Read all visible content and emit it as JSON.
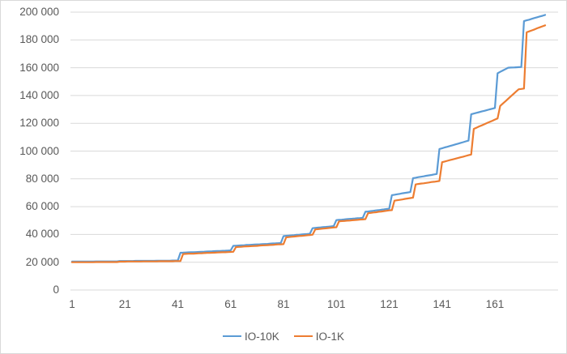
{
  "chart_data": {
    "type": "line",
    "title": "",
    "xlabel": "",
    "ylabel": "",
    "x_values_are_indices_starting_at_1": true,
    "n_points": 180,
    "ylim": [
      0,
      200000
    ],
    "y_tick_step": 20000,
    "y_tick_labels": [
      "0",
      "20 000",
      "40 000",
      "60 000",
      "80 000",
      "100 000",
      "120 000",
      "140 000",
      "160 000",
      "180 000",
      "200 000"
    ],
    "x_tick_values": [
      1,
      21,
      41,
      61,
      81,
      101,
      121,
      141,
      161
    ],
    "grid": "horizontal",
    "legend_position": "bottom-center",
    "axis_text_color": "#595959",
    "gridline_color": "#d9d9d9",
    "series": [
      {
        "name": "IO-10K",
        "color": "#5B9BD5",
        "values": [
          20500,
          20500,
          20500,
          20500,
          20500,
          20500,
          20500,
          20500,
          20500,
          20600,
          20600,
          20600,
          20600,
          20600,
          20600,
          20600,
          20600,
          20600,
          20900,
          20900,
          20900,
          20900,
          20900,
          20900,
          21000,
          21000,
          21000,
          21000,
          21000,
          21000,
          21000,
          21000,
          21100,
          21100,
          21100,
          21100,
          21100,
          21100,
          21200,
          21200,
          21200,
          26800,
          26900,
          27000,
          27100,
          27200,
          27200,
          27300,
          27400,
          27500,
          27600,
          27700,
          27800,
          27900,
          28000,
          28100,
          28100,
          28200,
          28300,
          28400,
          28500,
          31800,
          31900,
          32000,
          32100,
          32200,
          32400,
          32500,
          32600,
          32700,
          32800,
          32900,
          33000,
          33100,
          33200,
          33400,
          33500,
          33600,
          33700,
          33800,
          38800,
          39000,
          39100,
          39300,
          39500,
          39700,
          39800,
          40000,
          40200,
          40300,
          40500,
          44500,
          44700,
          44900,
          45100,
          45300,
          45400,
          45600,
          45800,
          46000,
          50300,
          50500,
          50600,
          50800,
          51000,
          51200,
          51300,
          51500,
          51700,
          51800,
          52000,
          56300,
          56500,
          56800,
          57000,
          57300,
          57500,
          57800,
          58000,
          58300,
          58500,
          68300,
          68600,
          68900,
          69200,
          69600,
          69900,
          70200,
          70500,
          80500,
          80800,
          81200,
          81500,
          81800,
          82200,
          82500,
          82800,
          83200,
          83500,
          101500,
          102000,
          102600,
          103100,
          103700,
          104200,
          104800,
          105300,
          105900,
          106400,
          107000,
          107500,
          126500,
          127000,
          127500,
          128000,
          128500,
          129000,
          129500,
          130000,
          130500,
          131000,
          156000,
          157000,
          158000,
          159000,
          160000,
          160100,
          160200,
          160300,
          160400,
          160500,
          193500,
          194100,
          194600,
          195200,
          195800,
          196300,
          196900,
          197400,
          198000
        ]
      },
      {
        "name": "IO-1K",
        "color": "#ED7D31",
        "values": [
          20000,
          20000,
          20000,
          20000,
          20000,
          20000,
          20000,
          20000,
          20000,
          20100,
          20100,
          20100,
          20100,
          20100,
          20100,
          20100,
          20100,
          20100,
          20400,
          20400,
          20400,
          20500,
          20500,
          20500,
          20500,
          20500,
          20500,
          20600,
          20600,
          20600,
          20600,
          20600,
          20600,
          20700,
          20700,
          20700,
          20700,
          20700,
          20700,
          20800,
          20800,
          20800,
          25900,
          26000,
          26100,
          26200,
          26200,
          26300,
          26400,
          26500,
          26600,
          26700,
          26700,
          26800,
          26900,
          27000,
          27100,
          27200,
          27200,
          27300,
          27400,
          27500,
          30900,
          31000,
          31100,
          31300,
          31400,
          31500,
          31600,
          31700,
          31800,
          32000,
          32100,
          32200,
          32300,
          32400,
          32500,
          32700,
          32800,
          32900,
          33000,
          37900,
          38100,
          38300,
          38500,
          38700,
          38900,
          39000,
          39200,
          39400,
          39600,
          39800,
          43600,
          43800,
          44000,
          44200,
          44400,
          44600,
          44800,
          45000,
          45200,
          49400,
          49600,
          49700,
          49900,
          50000,
          50200,
          50400,
          50500,
          50700,
          50800,
          51000,
          55300,
          55500,
          55800,
          56000,
          56300,
          56500,
          56800,
          57000,
          57300,
          57500,
          64300,
          64600,
          64900,
          65200,
          65600,
          65900,
          66200,
          66500,
          76000,
          76300,
          76600,
          76800,
          77100,
          77400,
          77700,
          77900,
          78200,
          78500,
          92000,
          92500,
          93000,
          93500,
          94000,
          94500,
          95000,
          95500,
          96000,
          96500,
          97000,
          97500,
          116000,
          116800,
          117700,
          118500,
          119300,
          120200,
          121000,
          121800,
          122700,
          123500,
          132500,
          134200,
          135900,
          137600,
          139400,
          141100,
          142800,
          144500,
          144700,
          145000,
          185500,
          186200,
          186900,
          187600,
          188400,
          189100,
          189800,
          190500
        ]
      }
    ]
  }
}
